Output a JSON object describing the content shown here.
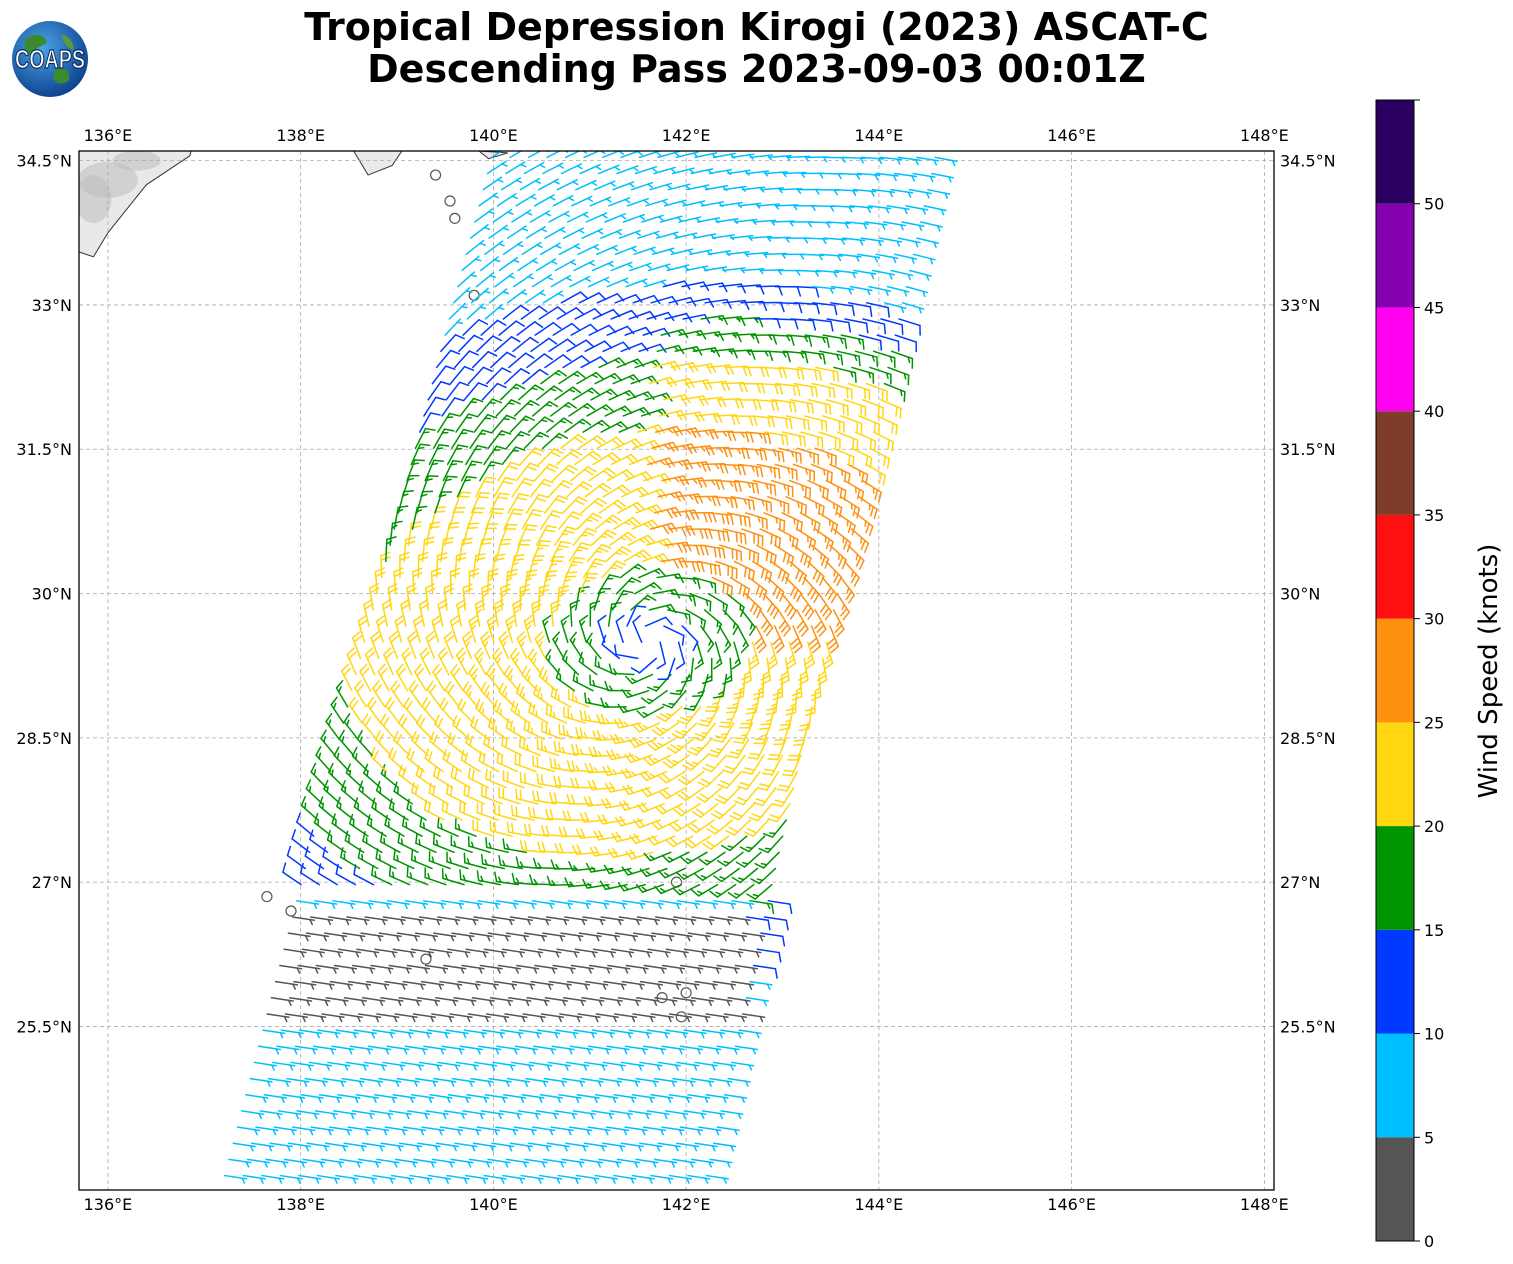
{
  "title": {
    "line1": "Tropical Depression Kirogi (2023) ASCAT-C",
    "line2": "Descending Pass 2023-09-03 00:01Z"
  },
  "logo": {
    "text": "COAPS",
    "icon": "globe-logo-icon"
  },
  "map": {
    "lon_range": [
      135.7,
      148.1
    ],
    "lat_range": [
      23.8,
      34.6
    ],
    "lon_ticks": [
      "136°E",
      "138°E",
      "140°E",
      "142°E",
      "144°E",
      "146°E",
      "148°E"
    ],
    "lon_tick_values": [
      136,
      138,
      140,
      142,
      144,
      146,
      148
    ],
    "lat_ticks": [
      "25.5°N",
      "27°N",
      "28.5°N",
      "30°N",
      "31.5°N",
      "33°N",
      "34.5°N"
    ],
    "lat_tick_values": [
      25.5,
      27,
      28.5,
      30,
      31.5,
      33,
      34.5
    ],
    "grid": true,
    "land_region": "Japan (Honshu coast) top-left"
  },
  "chart_data": {
    "type": "wind-barbs",
    "storm_center": {
      "lon": 141.6,
      "lat": 29.5
    },
    "swath_edge_lons_at_lat": {
      "lats": [
        23.9,
        34.6
      ],
      "west": [
        137.2,
        140.0
      ],
      "east": [
        142.2,
        144.6
      ]
    },
    "colorbar": {
      "label": "Wind Speed (knots)",
      "ticks": [
        "0",
        "5",
        "10",
        "15",
        "20",
        "25",
        "30",
        "35",
        "40",
        "45",
        "50"
      ],
      "bins": [
        {
          "min": 0,
          "max": 5,
          "color": "#555555"
        },
        {
          "min": 5,
          "max": 10,
          "color": "#00bfff"
        },
        {
          "min": 10,
          "max": 15,
          "color": "#0039ff"
        },
        {
          "min": 15,
          "max": 20,
          "color": "#009400"
        },
        {
          "min": 20,
          "max": 25,
          "color": "#ffd610"
        },
        {
          "min": 25,
          "max": 30,
          "color": "#ff9010"
        },
        {
          "min": 30,
          "max": 35,
          "color": "#ff1010"
        },
        {
          "min": 35,
          "max": 40,
          "color": "#7d3d2a"
        },
        {
          "min": 40,
          "max": 45,
          "color": "#ff00f0"
        },
        {
          "min": 45,
          "max": 50,
          "color": "#8500b0"
        },
        {
          "min": 50,
          "max": 55,
          "color": "#2a0060"
        }
      ]
    }
  }
}
